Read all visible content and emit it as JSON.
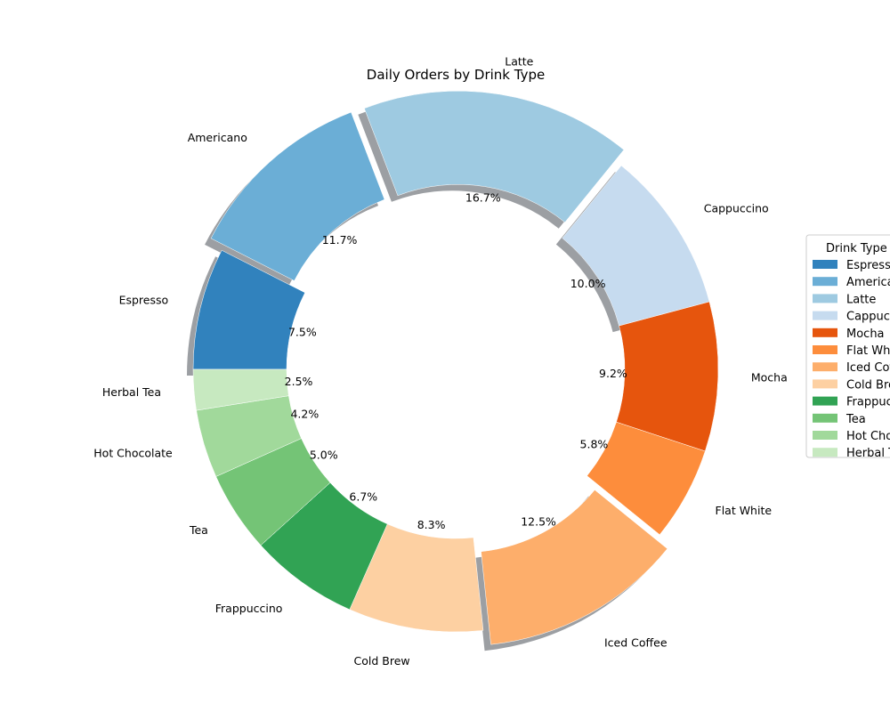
{
  "chart_data": {
    "type": "pie",
    "donut": true,
    "title": "Daily Orders by Drink Type",
    "legend": {
      "title": "Drink Type",
      "placement": "center-right"
    },
    "start_angle": 180,
    "direction": "clockwise",
    "slices": [
      {
        "label": "Espresso",
        "percent": 7.5,
        "pct_label": "7.5%",
        "color": "#3182bd",
        "exploded": false,
        "shadow": true
      },
      {
        "label": "Americano",
        "percent": 11.7,
        "pct_label": "11.7%",
        "color": "#6baed6",
        "exploded": true,
        "shadow": true
      },
      {
        "label": "Latte",
        "percent": 16.7,
        "pct_label": "16.7%",
        "color": "#9ecae1",
        "exploded": true,
        "shadow": true
      },
      {
        "label": "Cappuccino",
        "percent": 10.0,
        "pct_label": "10.0%",
        "color": "#c6dbef",
        "exploded": false,
        "shadow": true
      },
      {
        "label": "Mocha",
        "percent": 9.2,
        "pct_label": "9.2%",
        "color": "#e6550d",
        "exploded": false,
        "shadow": false
      },
      {
        "label": "Flat White",
        "percent": 5.8,
        "pct_label": "5.8%",
        "color": "#fd8d3c",
        "exploded": false,
        "shadow": false
      },
      {
        "label": "Iced Coffee",
        "percent": 12.5,
        "pct_label": "12.5%",
        "color": "#fdae6b",
        "exploded": true,
        "shadow": true
      },
      {
        "label": "Cold Brew",
        "percent": 8.3,
        "pct_label": "8.3%",
        "color": "#fdd0a2",
        "exploded": false,
        "shadow": false
      },
      {
        "label": "Frappuccino",
        "percent": 6.7,
        "pct_label": "6.7%",
        "color": "#31a354",
        "exploded": false,
        "shadow": false
      },
      {
        "label": "Tea",
        "percent": 5.0,
        "pct_label": "5.0%",
        "color": "#74c476",
        "exploded": false,
        "shadow": false
      },
      {
        "label": "Hot Chocolate",
        "percent": 4.2,
        "pct_label": "4.2%",
        "color": "#a1d99b",
        "exploded": false,
        "shadow": false
      },
      {
        "label": "Herbal Tea",
        "percent": 2.5,
        "pct_label": "2.5%",
        "color": "#c7e9c0",
        "exploded": false,
        "shadow": false
      }
    ]
  }
}
